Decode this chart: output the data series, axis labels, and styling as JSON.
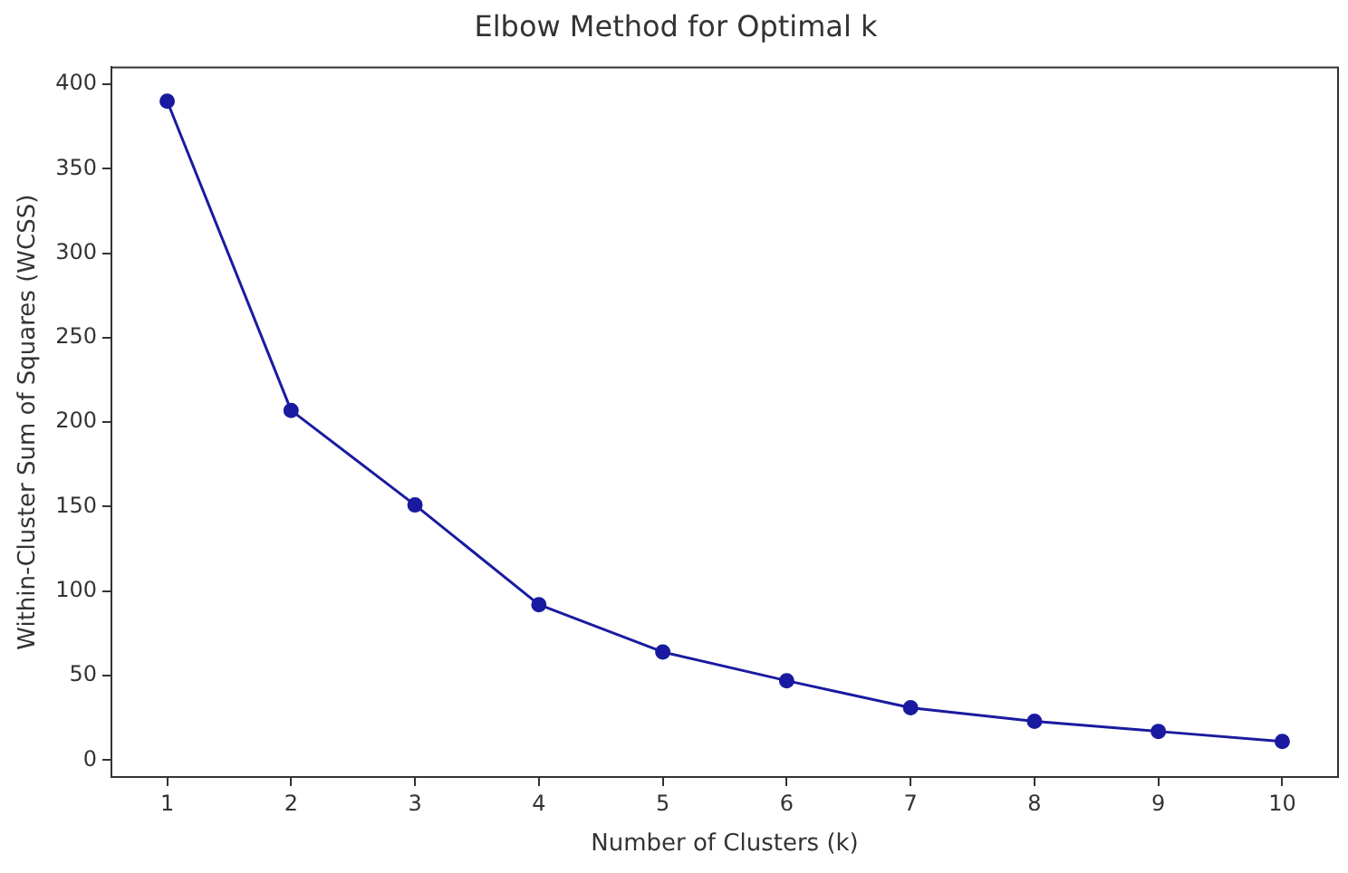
{
  "chart_data": {
    "type": "line",
    "title": "Elbow Method for Optimal k",
    "xlabel": "Number of Clusters (k)",
    "ylabel": "Within-Cluster Sum of Squares (WCSS)",
    "x": [
      1,
      2,
      3,
      4,
      5,
      6,
      7,
      8,
      9,
      10
    ],
    "series": [
      {
        "color": "#1a1aa0",
        "values": [
          390,
          207,
          151,
          92,
          64,
          47,
          31,
          23,
          17,
          11
        ]
      }
    ],
    "xlim": [
      0.55,
      10.45
    ],
    "xticks": [
      1,
      2,
      3,
      4,
      5,
      6,
      7,
      8,
      9,
      10
    ],
    "ylim": [
      -10,
      410
    ],
    "yticks": [
      0,
      50,
      100,
      150,
      200,
      250,
      300,
      350,
      400
    ],
    "grid": false,
    "legend": false,
    "marker": "circle",
    "line_style": "solid"
  }
}
